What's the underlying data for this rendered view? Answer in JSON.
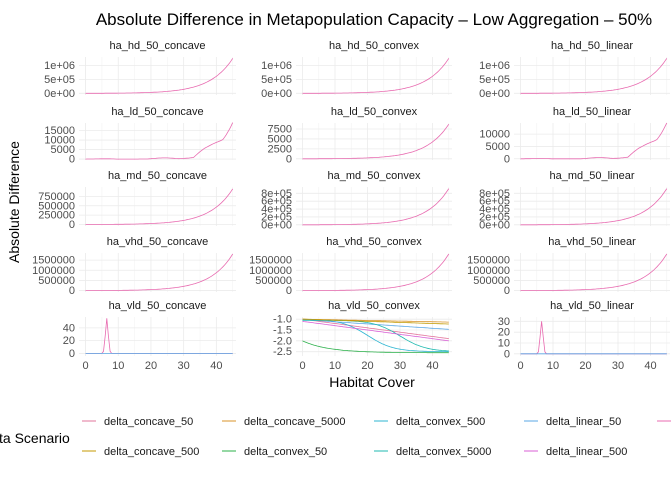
{
  "title": "Absolute Difference in Metapopulation Capacity – Low Aggregation – 50%",
  "xlabel": "Habitat Cover",
  "ylabel": "Absolute Difference",
  "legend": {
    "title": "Delta Scenario",
    "position": "bottom",
    "row1": [
      "delta_concave_50",
      "delta_concave_5000",
      "delta_convex_500",
      "delta_linear_50",
      ""
    ],
    "row2": [
      "delta_concave_500",
      "delta_convex_50",
      "delta_convex_5000",
      "delta_linear_500"
    ],
    "colors": {
      "delta_concave_50": "#e2759b",
      "delta_concave_500": "#c49a00",
      "delta_concave_5000": "#d8932a",
      "delta_convex_50": "#2bb04a",
      "delta_convex_500": "#2db5d2",
      "delta_convex_5000": "#1fbab0",
      "delta_linear_50": "#5aa7e6",
      "delta_linear_500": "#d95fd6",
      "delta_linear_5000": "#e86bb0"
    }
  },
  "chart_data": {
    "type": "line",
    "facet_grid": {
      "rows": 5,
      "cols": 3
    },
    "x_axis": {
      "ticks": [
        0,
        10,
        20,
        30,
        40
      ],
      "range": [
        -2,
        46
      ]
    },
    "grid": true,
    "panels": [
      {
        "title": "ha_hd_50_concave",
        "yticks": [
          "0e+00",
          "5e+05",
          "1e+06"
        ],
        "ylim": [
          -60000,
          1300000
        ],
        "shape": "exp",
        "ymax": 1250000
      },
      {
        "title": "ha_hd_50_convex",
        "yticks": [
          "0e+00",
          "5e+05",
          "1e+06"
        ],
        "ylim": [
          -60000,
          1300000
        ],
        "shape": "exp",
        "ymax": 1250000
      },
      {
        "title": "ha_hd_50_linear",
        "yticks": [
          "0e+00",
          "5e+05",
          "1e+06"
        ],
        "ylim": [
          -60000,
          1300000
        ],
        "shape": "exp",
        "ymax": 1250000
      },
      {
        "title": "ha_ld_50_concave",
        "yticks": [
          "0",
          "5000",
          "10000",
          "15000"
        ],
        "ylim": [
          -500,
          19000
        ],
        "shape": "wiggle",
        "ymax": 18500
      },
      {
        "title": "ha_ld_50_convex",
        "yticks": [
          "0",
          "2500",
          "5000",
          "7500"
        ],
        "ylim": [
          -300,
          9000
        ],
        "shape": "exp",
        "ymax": 8700
      },
      {
        "title": "ha_ld_50_linear",
        "yticks": [
          "0",
          "5000",
          "10000"
        ],
        "ylim": [
          -500,
          14500
        ],
        "shape": "wiggle",
        "ymax": 14000
      },
      {
        "title": "ha_md_50_concave",
        "yticks": [
          "0",
          "250000",
          "500000",
          "750000"
        ],
        "ylim": [
          -40000,
          1000000
        ],
        "shape": "exp",
        "ymax": 950000
      },
      {
        "title": "ha_md_50_convex",
        "yticks": [
          "0e+00",
          "2e+05",
          "4e+05",
          "6e+05",
          "8e+05"
        ],
        "ylim": [
          -30000,
          960000
        ],
        "shape": "exp",
        "ymax": 920000
      },
      {
        "title": "ha_md_50_linear",
        "yticks": [
          "0e+00",
          "2e+05",
          "4e+05",
          "6e+05",
          "8e+05"
        ],
        "ylim": [
          -30000,
          960000
        ],
        "shape": "exp",
        "ymax": 920000
      },
      {
        "title": "ha_vhd_50_concave",
        "yticks": [
          "0",
          "500000",
          "1000000",
          "1500000"
        ],
        "ylim": [
          -70000,
          1850000
        ],
        "shape": "exp",
        "ymax": 1800000
      },
      {
        "title": "ha_vhd_50_convex",
        "yticks": [
          "0",
          "500000",
          "1000000",
          "1500000"
        ],
        "ylim": [
          -70000,
          1850000
        ],
        "shape": "exp",
        "ymax": 1800000
      },
      {
        "title": "ha_vhd_50_linear",
        "yticks": [
          "0",
          "500000",
          "1000000",
          "1500000"
        ],
        "ylim": [
          -70000,
          1850000
        ],
        "shape": "exp",
        "ymax": 1800000
      },
      {
        "title": "ha_vld_50_concave",
        "yticks": [
          "0",
          "20",
          "40"
        ],
        "ylim": [
          -4,
          57
        ],
        "shape": "spike",
        "ymax": 55
      },
      {
        "title": "ha_vld_50_convex",
        "yticks": [
          "-2.5",
          "-2.0",
          "-1.5",
          "-1.0"
        ],
        "ylim": [
          -2.7,
          -0.9
        ],
        "shape": "multi"
      },
      {
        "title": "ha_vld_50_linear",
        "yticks": [
          "0",
          "10",
          "20",
          "30"
        ],
        "ylim": [
          -2,
          34
        ],
        "shape": "spike",
        "ymax": 30
      }
    ]
  }
}
